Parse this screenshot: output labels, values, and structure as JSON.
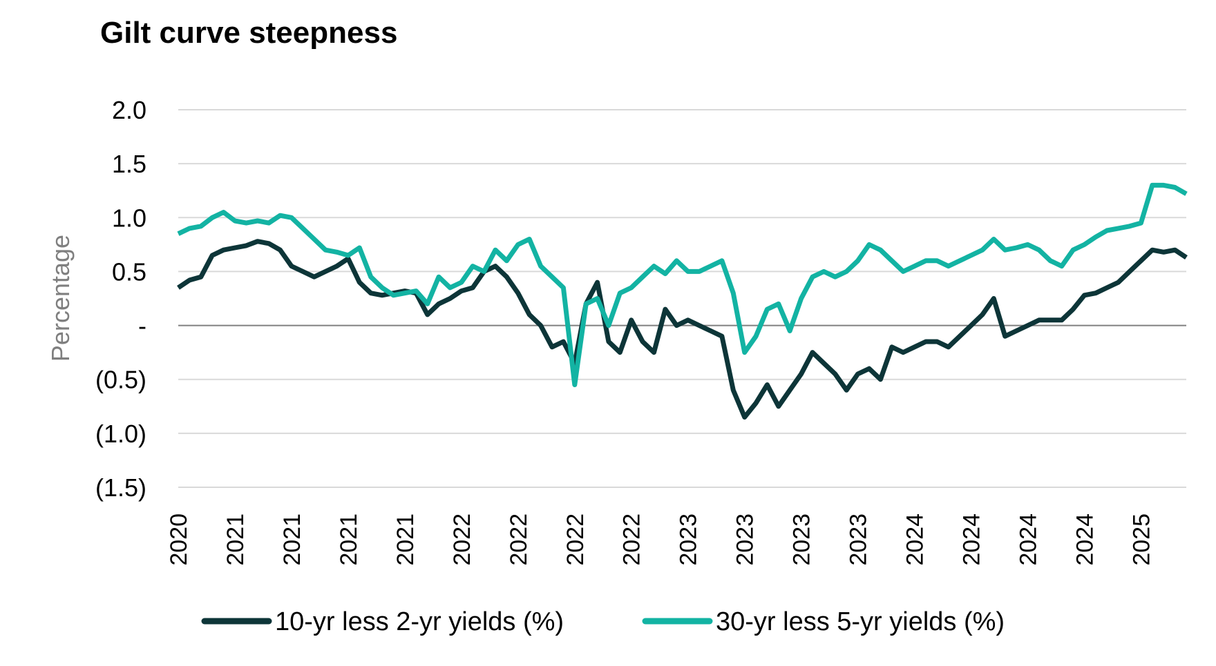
{
  "chart_data": {
    "type": "line",
    "title": "Gilt curve steepness",
    "y_label": "Percentage",
    "categories": [
      "2020",
      null,
      null,
      null,
      null,
      "2021",
      null,
      null,
      null,
      null,
      "2021",
      null,
      null,
      null,
      null,
      "2021",
      null,
      null,
      null,
      null,
      "2021",
      null,
      null,
      null,
      null,
      "2022",
      null,
      null,
      null,
      null,
      "2022",
      null,
      null,
      null,
      null,
      "2022",
      null,
      null,
      null,
      null,
      "2022",
      null,
      null,
      null,
      null,
      "2023",
      null,
      null,
      null,
      null,
      "2023",
      null,
      null,
      null,
      null,
      "2023",
      null,
      null,
      null,
      null,
      "2023",
      null,
      null,
      null,
      null,
      "2024",
      null,
      null,
      null,
      null,
      "2024",
      null,
      null,
      null,
      null,
      "2024",
      null,
      null,
      null,
      null,
      "2024",
      null,
      null,
      null,
      null,
      "2025",
      null,
      null,
      null,
      null
    ],
    "series": [
      {
        "name": "10-yr less 2-yr yields (%)",
        "color": "#0d3538",
        "values": [
          0.35,
          0.42,
          0.45,
          0.65,
          0.7,
          0.72,
          0.74,
          0.78,
          0.76,
          0.7,
          0.55,
          0.5,
          0.45,
          0.5,
          0.55,
          0.62,
          0.4,
          0.3,
          0.28,
          0.3,
          0.32,
          0.3,
          0.1,
          0.2,
          0.25,
          0.32,
          0.35,
          0.5,
          0.55,
          0.45,
          0.3,
          0.1,
          0.0,
          -0.2,
          -0.15,
          -0.35,
          0.2,
          0.4,
          -0.15,
          -0.25,
          0.05,
          -0.15,
          -0.25,
          0.15,
          0.0,
          0.05,
          0.0,
          -0.05,
          -0.1,
          -0.6,
          -0.85,
          -0.72,
          -0.55,
          -0.75,
          -0.6,
          -0.45,
          -0.25,
          -0.35,
          -0.45,
          -0.6,
          -0.45,
          -0.4,
          -0.5,
          -0.2,
          -0.25,
          -0.2,
          -0.15,
          -0.15,
          -0.2,
          -0.1,
          0.0,
          0.1,
          0.25,
          -0.1,
          -0.05,
          0.0,
          0.05,
          0.05,
          0.05,
          0.15,
          0.28,
          0.3,
          0.35,
          0.4,
          0.5,
          0.6,
          0.7,
          0.68,
          0.7,
          0.63
        ]
      },
      {
        "name": "30-yr less 5-yr yields (%)",
        "color": "#13b3a3",
        "values": [
          0.85,
          0.9,
          0.92,
          1.0,
          1.05,
          0.97,
          0.95,
          0.97,
          0.95,
          1.02,
          1.0,
          0.9,
          0.8,
          0.7,
          0.68,
          0.65,
          0.72,
          0.45,
          0.35,
          0.28,
          0.3,
          0.32,
          0.2,
          0.45,
          0.35,
          0.4,
          0.55,
          0.5,
          0.7,
          0.6,
          0.75,
          0.8,
          0.55,
          0.45,
          0.35,
          -0.55,
          0.2,
          0.25,
          0.0,
          0.3,
          0.35,
          0.45,
          0.55,
          0.48,
          0.6,
          0.5,
          0.5,
          0.55,
          0.6,
          0.3,
          -0.25,
          -0.1,
          0.15,
          0.2,
          -0.05,
          0.25,
          0.45,
          0.5,
          0.45,
          0.5,
          0.6,
          0.75,
          0.7,
          0.6,
          0.5,
          0.55,
          0.6,
          0.6,
          0.55,
          0.6,
          0.65,
          0.7,
          0.8,
          0.7,
          0.72,
          0.75,
          0.7,
          0.6,
          0.55,
          0.7,
          0.75,
          0.82,
          0.88,
          0.9,
          0.92,
          0.95,
          1.3,
          1.3,
          1.28,
          1.22
        ]
      }
    ],
    "ylim": [
      -1.5,
      2.0
    ],
    "yticks": [
      {
        "value": 2.0,
        "label": "2.0"
      },
      {
        "value": 1.5,
        "label": "1.5"
      },
      {
        "value": 1.0,
        "label": "1.0"
      },
      {
        "value": 0.5,
        "label": "0.5"
      },
      {
        "value": 0,
        "label": "-"
      },
      {
        "value": -0.5,
        "label": "(0.5)"
      },
      {
        "value": -1.0,
        "label": "(1.0)"
      },
      {
        "value": -1.5,
        "label": "(1.5)"
      }
    ],
    "grid": true,
    "legend": "bottom"
  }
}
